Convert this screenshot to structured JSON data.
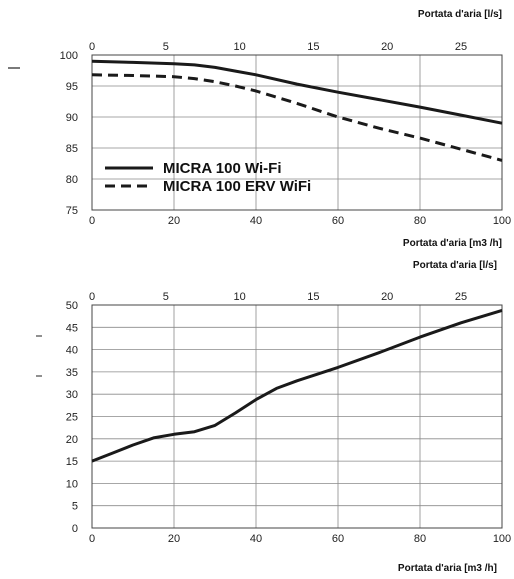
{
  "chart_data": [
    {
      "type": "line",
      "title": "",
      "xlabel": "Portata d'aria [m3 /h]",
      "x2label": "Portata d'aria [l/s]",
      "ylabel": "",
      "xlim": [
        0,
        100
      ],
      "ylim": [
        75,
        100
      ],
      "x_ticks": [
        "0",
        "20",
        "40",
        "60",
        "80",
        "100"
      ],
      "x2_ticks": [
        "0",
        "5",
        "10",
        "15",
        "20",
        "25"
      ],
      "x2_tick_values": [
        0,
        5,
        10,
        15,
        20,
        25
      ],
      "x2_factor": 3.6,
      "y_ticks": [
        "75",
        "80",
        "85",
        "90",
        "95",
        "100"
      ],
      "grid": true,
      "legend": "bottom-left",
      "series": [
        {
          "name": "MICRA 100 Wi-Fi",
          "style": "solid",
          "color": "#1a1a1a",
          "x": [
            0,
            10,
            20,
            25,
            30,
            35,
            40,
            50,
            60,
            70,
            80,
            90,
            100
          ],
          "y": [
            99,
            98.8,
            98.6,
            98.4,
            98,
            97.4,
            96.8,
            95.3,
            94,
            92.8,
            91.6,
            90.3,
            89
          ]
        },
        {
          "name": "MICRA 100 ERV WiFi",
          "style": "dashed",
          "color": "#1a1a1a",
          "x": [
            0,
            10,
            20,
            25,
            30,
            35,
            40,
            50,
            60,
            70,
            80,
            90,
            100
          ],
          "y": [
            96.8,
            96.7,
            96.5,
            96.2,
            95.7,
            95,
            94.2,
            92.2,
            90,
            88.2,
            86.6,
            84.8,
            83
          ]
        }
      ]
    },
    {
      "type": "line",
      "title": "",
      "xlabel": "Portata d'aria [m3 /h]",
      "x2label": "Portata d'aria [l/s]",
      "ylabel": "",
      "xlim": [
        0,
        100
      ],
      "ylim": [
        0,
        50
      ],
      "x_ticks": [
        "0",
        "20",
        "40",
        "60",
        "80",
        "100"
      ],
      "x2_ticks": [
        "0",
        "5",
        "10",
        "15",
        "20",
        "25"
      ],
      "x2_tick_values": [
        0,
        5,
        10,
        15,
        20,
        25
      ],
      "x2_factor": 3.6,
      "y_ticks": [
        "0",
        "5",
        "10",
        "15",
        "20",
        "25",
        "30",
        "35",
        "40",
        "45",
        "50"
      ],
      "grid": true,
      "legend": "none",
      "series": [
        {
          "style": "solid",
          "color": "#1a1a1a",
          "x": [
            0,
            5,
            10,
            15,
            20,
            25,
            30,
            35,
            40,
            45,
            50,
            60,
            70,
            80,
            90,
            100
          ],
          "y": [
            15,
            16.8,
            18.6,
            20.2,
            21,
            21.6,
            23,
            25.8,
            28.8,
            31.3,
            33,
            36,
            39.3,
            42.8,
            46,
            48.8
          ]
        }
      ]
    }
  ]
}
